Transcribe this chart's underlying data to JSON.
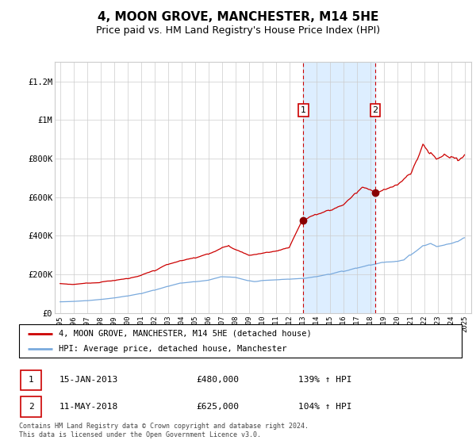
{
  "title": "4, MOON GROVE, MANCHESTER, M14 5HE",
  "subtitle": "Price paid vs. HM Land Registry's House Price Index (HPI)",
  "property_label": "4, MOON GROVE, MANCHESTER, M14 5HE (detached house)",
  "hpi_label": "HPI: Average price, detached house, Manchester",
  "annotation1_date": "15-JAN-2013",
  "annotation1_price": "£480,000",
  "annotation1_hpi": "139% ↑ HPI",
  "annotation2_date": "11-MAY-2018",
  "annotation2_price": "£625,000",
  "annotation2_hpi": "104% ↑ HPI",
  "footer": "Contains HM Land Registry data © Crown copyright and database right 2024.\nThis data is licensed under the Open Government Licence v3.0.",
  "title_fontsize": 11,
  "subtitle_fontsize": 9,
  "property_color": "#cc0000",
  "hpi_color": "#7aaadd",
  "highlight_color": "#ddeeff",
  "annotation_box_color": "#cc0000",
  "grid_color": "#cccccc",
  "hatch_color": "#cccccc",
  "ylim": [
    0,
    1300000
  ],
  "yticks": [
    0,
    200000,
    400000,
    600000,
    800000,
    1000000,
    1200000
  ],
  "ytick_labels": [
    "£0",
    "£200K",
    "£400K",
    "£600K",
    "£800K",
    "£1M",
    "£1.2M"
  ],
  "sale1_year": 2013.04,
  "sale2_year": 2018.37,
  "sale1_price": 480000,
  "sale2_price": 625000
}
